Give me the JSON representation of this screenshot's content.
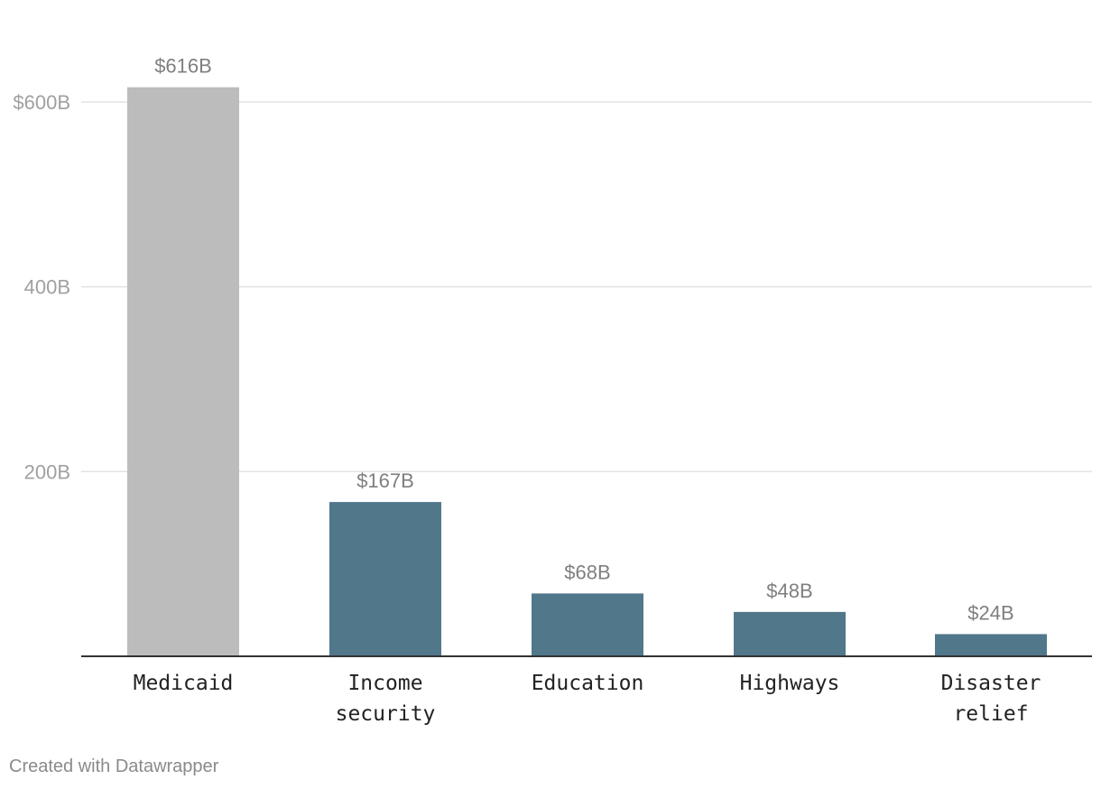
{
  "chart_data": {
    "type": "bar",
    "categories": [
      "Medicaid",
      "Income security",
      "Education",
      "Highways",
      "Disaster relief"
    ],
    "category_lines": [
      [
        "Medicaid"
      ],
      [
        "Income",
        "security"
      ],
      [
        "Education"
      ],
      [
        "Highways"
      ],
      [
        "Disaster",
        "relief"
      ]
    ],
    "values": [
      616,
      167,
      68,
      48,
      24
    ],
    "value_labels": [
      "$616B",
      "$167B",
      "$68B",
      "$48B",
      "$24B"
    ],
    "bar_colors": [
      "#bcbcbc",
      "#51778b",
      "#51778b",
      "#51778b",
      "#51778b"
    ],
    "y_ticks": [
      200,
      400,
      600
    ],
    "y_tick_labels": [
      "200B",
      "400B",
      "$600B"
    ],
    "ylim": [
      0,
      616
    ],
    "grid": true,
    "title": "",
    "xlabel": "",
    "ylabel": ""
  },
  "footer": {
    "credit": "Created with Datawrapper"
  },
  "colors": {
    "highlight_bar": "#bcbcbc",
    "default_bar": "#51778b",
    "gridline": "#e3e3e3",
    "baseline": "#333333",
    "tick_label": "#a0a0a0",
    "value_label": "#7f7f7f"
  }
}
